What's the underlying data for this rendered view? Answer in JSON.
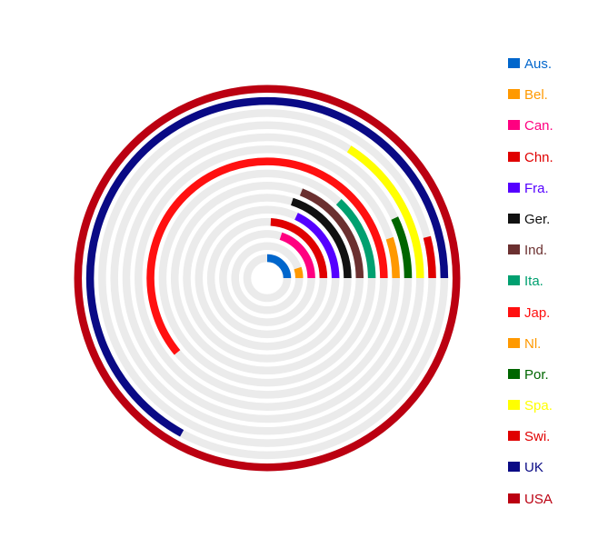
{
  "chart_data": {
    "type": "radial-bar",
    "title": "",
    "max_value": 100,
    "grid": true,
    "legend_position": "right",
    "track_color": "#ebebeb",
    "series": [
      {
        "label": "Aus.",
        "value": 25,
        "color": "#0066cc"
      },
      {
        "label": "Bel.",
        "value": 5,
        "color": "#ff9900"
      },
      {
        "label": "Can.",
        "value": 20,
        "color": "#ff0080"
      },
      {
        "label": "Chn.",
        "value": 24,
        "color": "#e00000"
      },
      {
        "label": "Fra.",
        "value": 18,
        "color": "#5500ff"
      },
      {
        "label": "Ger.",
        "value": 20,
        "color": "#111111"
      },
      {
        "label": "Ind.",
        "value": 19,
        "color": "#6b3030"
      },
      {
        "label": "Ita.",
        "value": 13,
        "color": "#00a070"
      },
      {
        "label": "Jap.",
        "value": 61,
        "color": "#ff1010"
      },
      {
        "label": "Nl.",
        "value": 5,
        "color": "#ff9900"
      },
      {
        "label": "Por.",
        "value": 7,
        "color": "#006600"
      },
      {
        "label": "Spa.",
        "value": 16,
        "color": "#ffff00"
      },
      {
        "label": "Swi.",
        "value": 4,
        "color": "#e00000"
      },
      {
        "label": "UK",
        "value": 67,
        "color": "#0a0a85"
      },
      {
        "label": "USA",
        "value": 100,
        "color": "#bb0011"
      }
    ]
  }
}
